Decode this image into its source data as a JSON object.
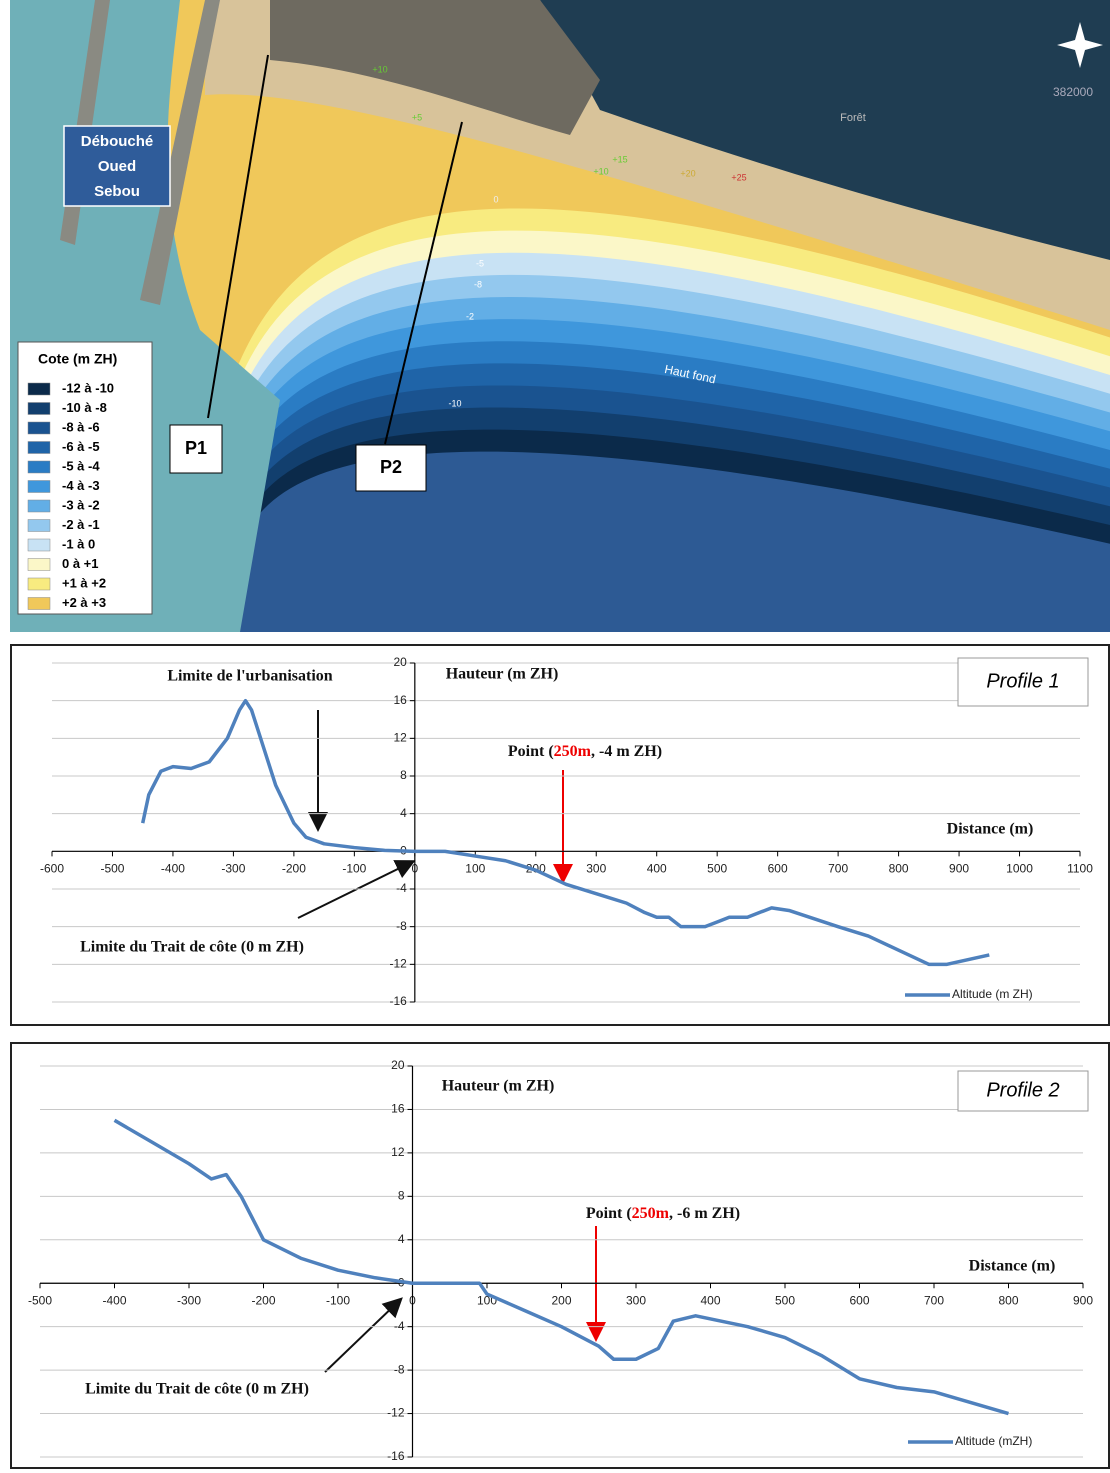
{
  "map": {
    "outlet_label": [
      "Débouché",
      "Oued",
      "Sebou"
    ],
    "profiles": [
      "P1",
      "P2"
    ],
    "labels": {
      "shoal": "Haut fond",
      "forest": "Forêt",
      "coordinate": "382000"
    },
    "contours": [
      "+10",
      "+5",
      "+15",
      "+10",
      "+20",
      "+25",
      "0",
      "-5",
      "-8",
      "-2",
      "-10"
    ],
    "legend": {
      "title": "Cote (m ZH)",
      "items": [
        {
          "label": "-12 à -10",
          "color": "#0b2a4a"
        },
        {
          "label": "-10 à -8",
          "color": "#123f6e"
        },
        {
          "label": "-8 à -6",
          "color": "#1a5390"
        },
        {
          "label": "-6 à -5",
          "color": "#1f64a8"
        },
        {
          "label": "-5 à -4",
          "color": "#2a7cc4"
        },
        {
          "label": "-4 à -3",
          "color": "#3f97dc"
        },
        {
          "label": "-3 à -2",
          "color": "#62aee6"
        },
        {
          "label": "-2 à -1",
          "color": "#93c8ee"
        },
        {
          "label": "-1 à 0",
          "color": "#c8e2f4"
        },
        {
          "label": "0 à +1",
          "color": "#fbf7c8"
        },
        {
          "label": "+1 à +2",
          "color": "#f8eb80"
        },
        {
          "label": "+2 à +3",
          "color": "#f0c85a"
        }
      ]
    }
  },
  "chart_data": [
    {
      "type": "line",
      "title": "Profile 1",
      "y_label": "Hauteur (m ZH)",
      "x_label": "Distance (m)",
      "xlim": [
        -600,
        1100
      ],
      "xticks": [
        -600,
        -500,
        -400,
        -300,
        -200,
        -100,
        0,
        100,
        200,
        300,
        400,
        500,
        600,
        700,
        800,
        900,
        1000,
        1100
      ],
      "ylim": [
        -16,
        20
      ],
      "yticks": [
        20,
        16,
        12,
        8,
        4,
        0,
        -4,
        -8,
        -12,
        -16
      ],
      "annotations": {
        "urbanisation": "Limite de l'urbanisation",
        "coastline": "Limite du Trait de côte (0 m ZH)",
        "point": {
          "prefix": "Point (",
          "highlight": "250m",
          "suffix": ", -4 m ZH)"
        }
      },
      "legend": "lower right",
      "series": [
        {
          "name": "Altitude (m ZH)",
          "color": "#4f81bd",
          "x": [
            -450,
            -440,
            -420,
            -400,
            -370,
            -340,
            -310,
            -290,
            -280,
            -270,
            -250,
            -230,
            -200,
            -180,
            -150,
            -100,
            -50,
            0,
            50,
            80,
            100,
            150,
            200,
            250,
            300,
            350,
            380,
            400,
            420,
            440,
            480,
            500,
            520,
            550,
            590,
            620,
            700,
            750,
            800,
            850,
            880,
            950
          ],
          "values": [
            3,
            6,
            8.5,
            9,
            8.8,
            9.5,
            12,
            15,
            16,
            15,
            11,
            7,
            3,
            1.5,
            0.8,
            0.4,
            0.1,
            0,
            0,
            -0.3,
            -0.5,
            -1,
            -2,
            -3.5,
            -4.5,
            -5.5,
            -6.5,
            -7,
            -7,
            -8,
            -8,
            -7.5,
            -7,
            -7,
            -6,
            -6.3,
            -8,
            -9,
            -10.5,
            -12,
            -12,
            -11
          ]
        }
      ]
    },
    {
      "type": "line",
      "title": "Profile 2",
      "y_label": "Hauteur (m  ZH)",
      "x_label": "Distance (m)",
      "xlim": [
        -500,
        900
      ],
      "xticks": [
        -500,
        -400,
        -300,
        -200,
        -100,
        0,
        100,
        200,
        300,
        400,
        500,
        600,
        700,
        800,
        900
      ],
      "ylim": [
        -16,
        20
      ],
      "yticks": [
        20,
        16,
        12,
        8,
        4,
        0,
        -4,
        -8,
        -12,
        -16
      ],
      "annotations": {
        "coastline": "Limite du Trait de côte (0 m ZH)",
        "point": {
          "prefix": "Point (",
          "highlight": "250m",
          "suffix": ", -6 m ZH)"
        }
      },
      "legend": "lower right",
      "series": [
        {
          "name": "Altitude (mZH)",
          "color": "#4f81bd",
          "x": [
            -400,
            -350,
            -300,
            -270,
            -250,
            -230,
            -200,
            -150,
            -100,
            -50,
            0,
            50,
            90,
            100,
            150,
            200,
            250,
            270,
            300,
            330,
            350,
            380,
            450,
            500,
            550,
            600,
            650,
            700,
            750,
            800
          ],
          "values": [
            15,
            13,
            11,
            9.6,
            10,
            8,
            4,
            2.3,
            1.2,
            0.5,
            0,
            0,
            0,
            -1,
            -2.5,
            -4,
            -5.8,
            -7,
            -7,
            -6,
            -3.5,
            -3,
            -4,
            -5,
            -6.7,
            -8.8,
            -9.6,
            -10,
            -11,
            -12
          ]
        }
      ]
    }
  ]
}
